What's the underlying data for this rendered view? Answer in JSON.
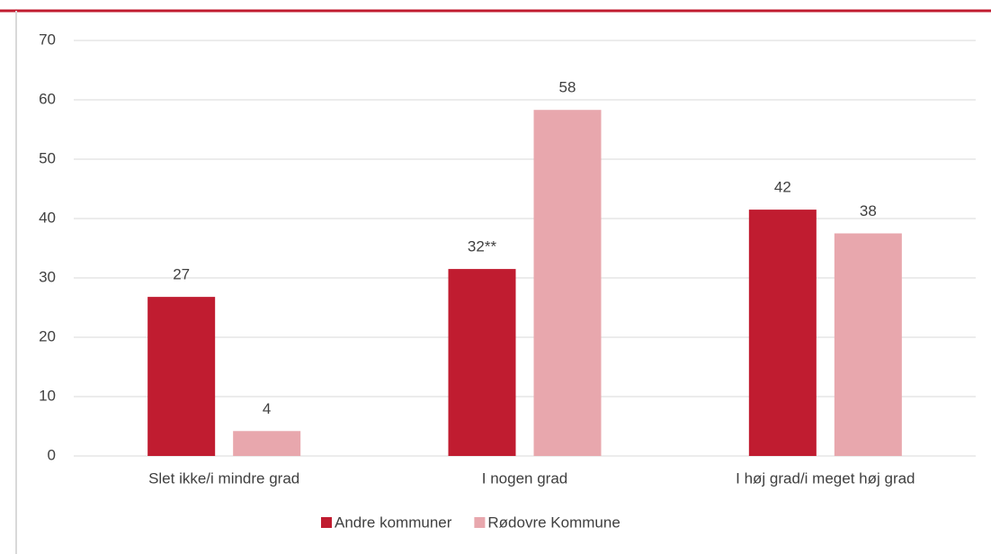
{
  "chart_data": {
    "type": "bar",
    "categories": [
      "Slet ikke/i mindre grad",
      "I nogen grad",
      "I høj grad/i meget høj grad"
    ],
    "series": [
      {
        "name": "Andre kommuner",
        "color": "#c01c30",
        "values": [
          26.8,
          31.5,
          41.5
        ],
        "value_labels": [
          "27",
          "32**",
          "42"
        ]
      },
      {
        "name": "Rødovre Kommune",
        "color": "#e8a7ad",
        "values": [
          4.2,
          58.3,
          37.5
        ],
        "value_labels": [
          "4",
          "58",
          "38"
        ]
      }
    ],
    "ylim": [
      0,
      70
    ],
    "yticks": [
      0,
      10,
      20,
      30,
      40,
      50,
      60,
      70
    ],
    "grid": true,
    "legend": "bottom"
  }
}
